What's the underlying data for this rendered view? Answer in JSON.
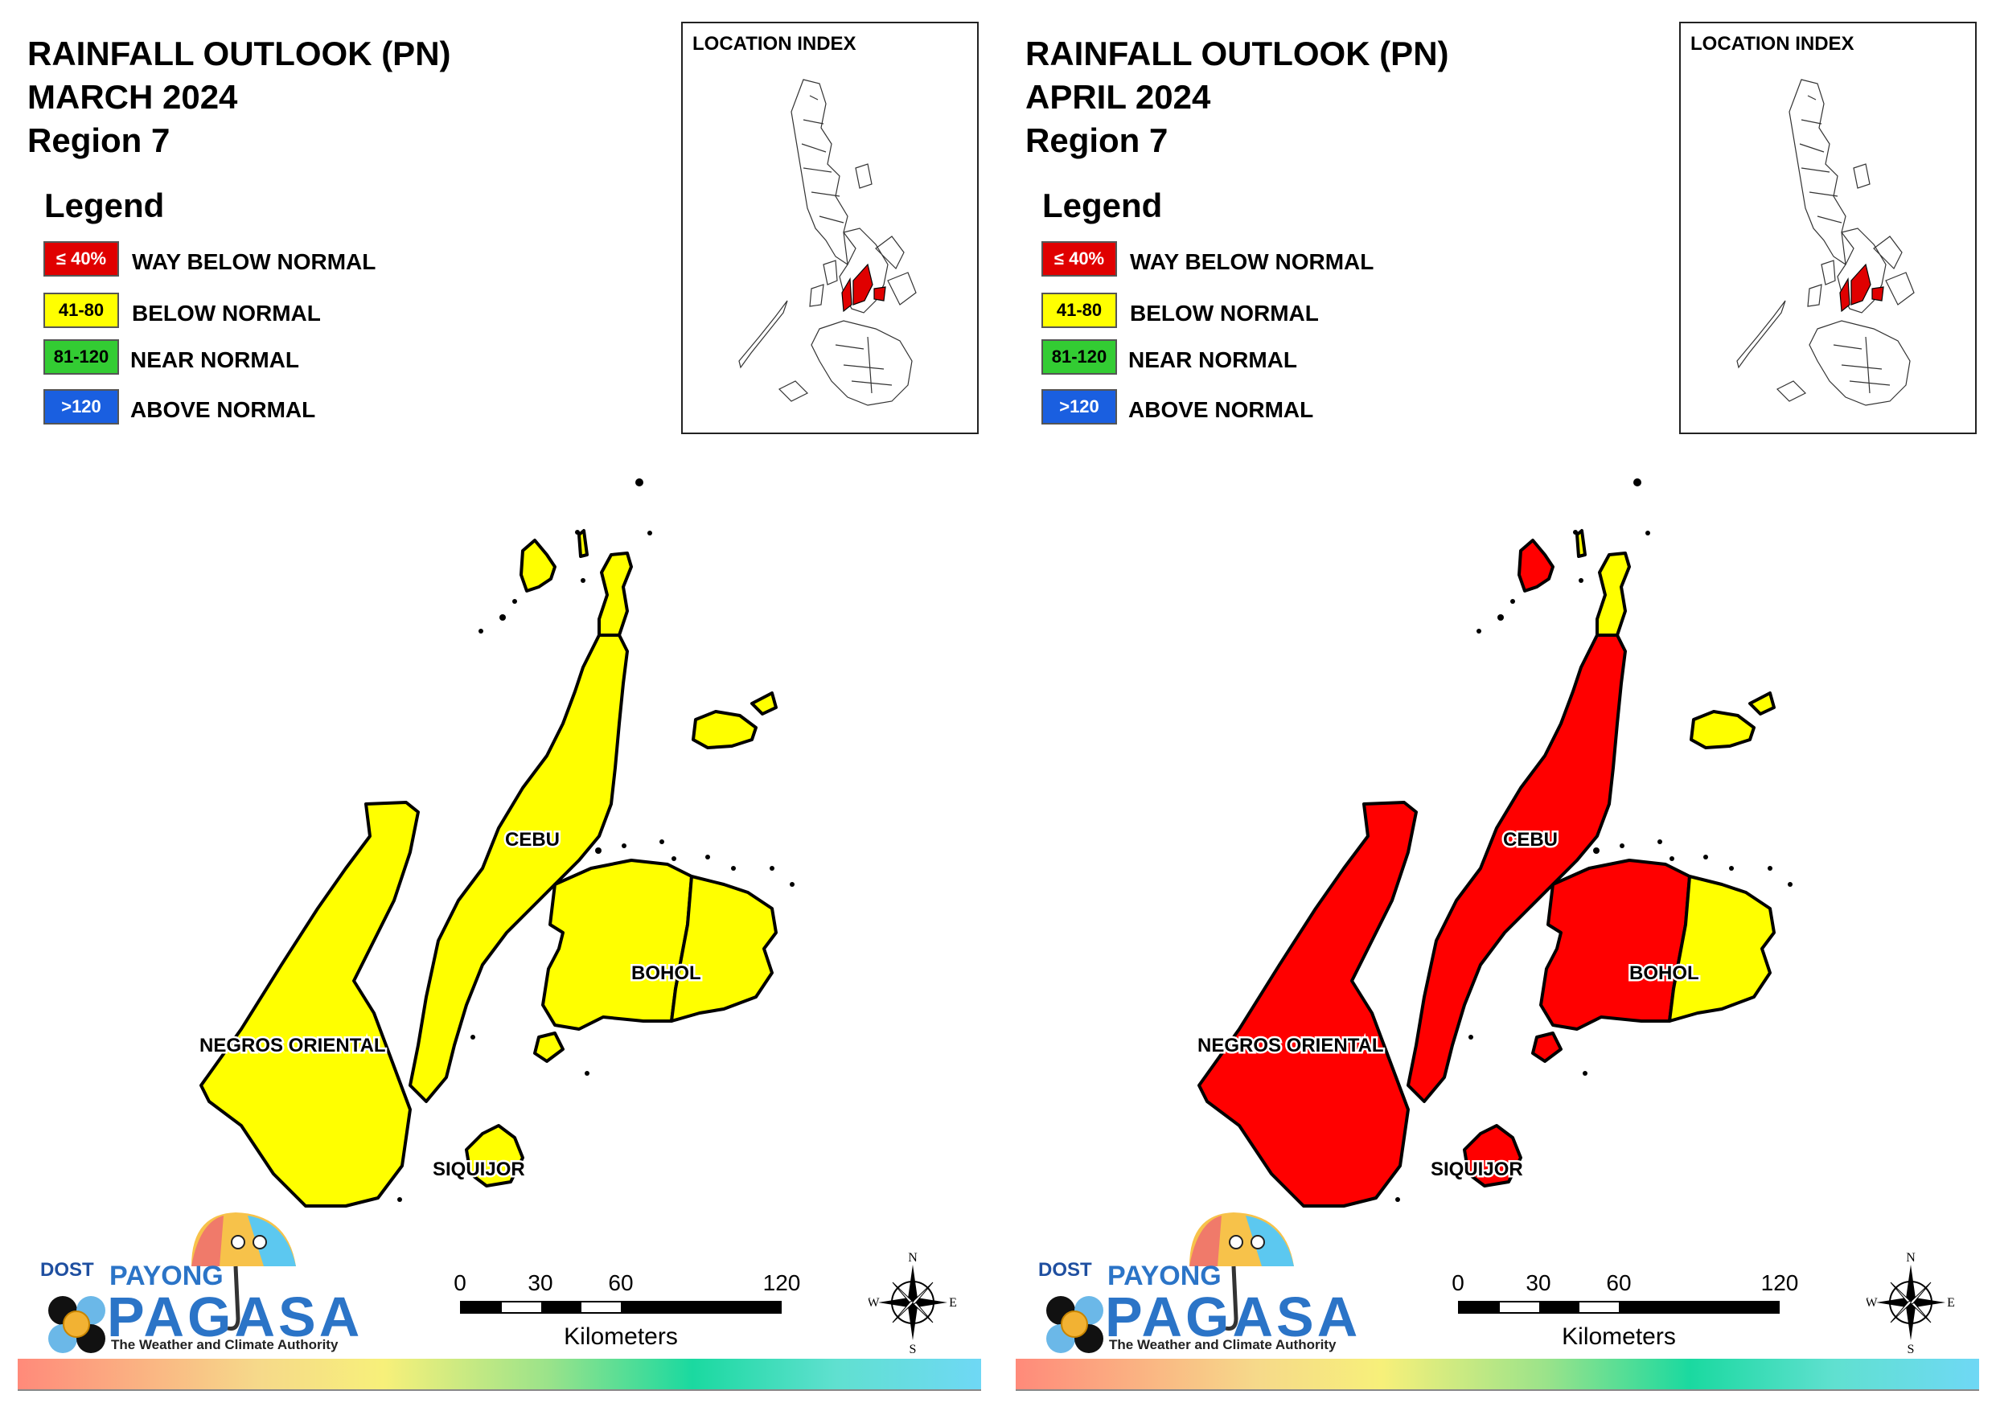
{
  "panels": [
    {
      "title_line1": "RAINFALL OUTLOOK (PN)",
      "title_line2": "MARCH 2024",
      "title_line3": "Region 7",
      "provinces": {
        "cebu_north": "#ffff00",
        "cebu_main": "#ffff00",
        "negros": "#ffff00",
        "bohol_west": "#ffff00",
        "bohol_east": "#ffff00",
        "siquijor": "#ffff00",
        "bantayan": "#ffff00",
        "camotes": "#ffff00"
      }
    },
    {
      "title_line1": "RAINFALL OUTLOOK (PN)",
      "title_line2": "APRIL 2024",
      "title_line3": "Region 7",
      "provinces": {
        "cebu_north": "#ffff00",
        "cebu_main": "#ff0000",
        "negros": "#ff0000",
        "bohol_west": "#ff0000",
        "bohol_east": "#ffff00",
        "siquijor": "#ff0000",
        "bantayan": "#ff0000",
        "camotes": "#ffff00"
      }
    }
  ],
  "legend": {
    "title": "Legend",
    "items": [
      {
        "range": "≤ 40%",
        "label": "WAY BELOW NORMAL",
        "color": "#e00000",
        "text_color": "#ffffff"
      },
      {
        "range": "41-80",
        "label": "BELOW NORMAL",
        "color": "#ffff00",
        "text_color": "#000000"
      },
      {
        "range": "81-120",
        "label": "NEAR NORMAL",
        "color": "#33cc33",
        "text_color": "#000000"
      },
      {
        "range": ">120",
        "label": "ABOVE NORMAL",
        "color": "#1a5fe0",
        "text_color": "#ffffff"
      }
    ]
  },
  "inset": {
    "title": "LOCATION INDEX"
  },
  "labels": {
    "cebu": "CEBU",
    "bohol": "BOHOL",
    "negros": "NEGROS ORIENTAL",
    "siquijor": "SIQUIJOR"
  },
  "logo": {
    "dost": "DOST",
    "payong": "PAYONG",
    "pagasa": "PAGASA",
    "tagline": "The Weather and Climate Authority"
  },
  "scale": {
    "ticks": [
      "0",
      "30",
      "60",
      "120"
    ],
    "units": "Kilometers"
  },
  "compass": {
    "n": "N",
    "s": "S",
    "e": "E",
    "w": "W"
  }
}
